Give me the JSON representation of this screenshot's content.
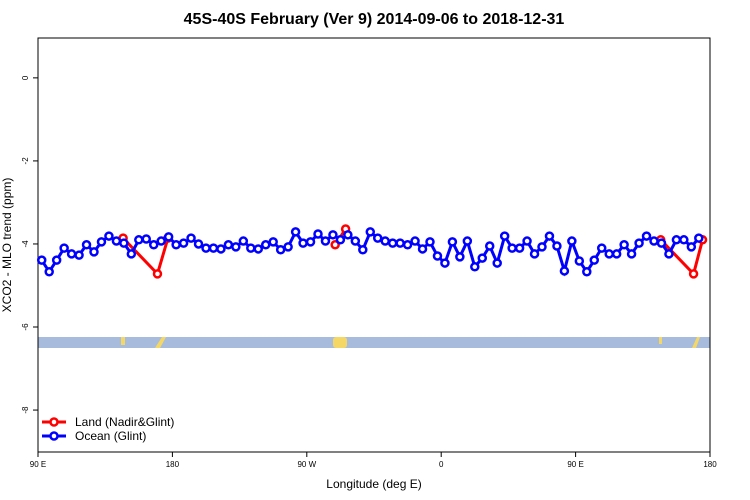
{
  "chart_data": {
    "type": "line",
    "title": "45S-40S February (Ver 9)   2014-09-06 to 2018-12-31",
    "x_label": "Longitude (deg E)",
    "y_label": "XCO2 - MLO trend (ppm)",
    "xlim": [
      90,
      540
    ],
    "ylim": [
      -9.01,
      0.96
    ],
    "xticks": [
      {
        "value": 90,
        "label": "90 E"
      },
      {
        "value": 180,
        "label": "180"
      },
      {
        "value": 270,
        "label": "90 W"
      },
      {
        "value": 360,
        "label": "0"
      },
      {
        "value": 450,
        "label": "90 E"
      },
      {
        "value": 540,
        "label": "180"
      }
    ],
    "yticks": [
      0,
      -2,
      -4,
      -6,
      -8
    ],
    "legend": "bottom-left",
    "series": [
      {
        "name": "Land (Nadir&Glint)",
        "color": "#ff0000",
        "x": [
          147,
          170,
          177,
          289,
          296,
          507,
          529,
          535
        ],
        "values": [
          -3.86,
          -4.72,
          -3.86,
          -4.02,
          -3.64,
          -3.9,
          -4.72,
          -3.9
        ]
      },
      {
        "name": "Ocean (Glint)",
        "color": "#0000ff",
        "x": [
          92.5,
          97.5,
          102.5,
          107.5,
          112.5,
          117.5,
          122.5,
          127.5,
          132.5,
          137.5,
          142.5,
          147.5,
          152.5,
          157.5,
          162.5,
          167.5,
          172.5,
          177.5,
          182.5,
          187.5,
          192.5,
          197.5,
          202.5,
          207.5,
          212.5,
          217.5,
          222.5,
          227.5,
          232.5,
          237.5,
          242.5,
          247.5,
          252.5,
          257.5,
          262.5,
          267.5,
          272.5,
          277.5,
          282.5,
          287.5,
          292.5,
          297.5,
          302.5,
          307.5,
          312.5,
          317.5,
          322.5,
          327.5,
          332.5,
          337.5,
          342.5,
          347.5,
          352.5,
          357.5,
          362.5,
          367.5,
          372.5,
          377.5,
          382.5,
          387.5,
          392.5,
          397.5,
          402.5,
          407.5,
          412.5,
          417.5,
          422.5,
          427.5,
          432.5,
          437.5,
          442.5,
          447.5,
          452.5,
          457.5,
          462.5,
          467.5,
          472.5,
          477.5,
          482.5,
          487.5,
          492.5,
          497.5,
          502.5,
          507.5,
          512.5,
          517.5,
          522.5,
          527.5,
          532.5
        ],
        "values": [
          -4.39,
          -4.67,
          -4.39,
          -4.1,
          -4.24,
          -4.27,
          -4.02,
          -4.19,
          -3.95,
          -3.81,
          -3.93,
          -3.98,
          -4.24,
          -3.9,
          -3.88,
          -4.02,
          -3.93,
          -3.83,
          -4.02,
          -3.98,
          -3.86,
          -4.0,
          -4.1,
          -4.1,
          -4.12,
          -4.02,
          -4.07,
          -3.93,
          -4.1,
          -4.12,
          -4.02,
          -3.95,
          -4.14,
          -4.07,
          -3.71,
          -3.98,
          -3.95,
          -3.76,
          -3.93,
          -3.78,
          -3.9,
          -3.78,
          -3.93,
          -4.14,
          -3.71,
          -3.86,
          -3.93,
          -3.98,
          -3.98,
          -4.02,
          -3.93,
          -4.12,
          -3.95,
          -4.29,
          -4.46,
          -3.95,
          -4.31,
          -3.93,
          -4.55,
          -4.34,
          -4.05,
          -4.46,
          -3.81,
          -4.1,
          -4.1,
          -3.93,
          -4.24,
          -4.07,
          -3.81,
          -4.05,
          -4.65,
          -3.93,
          -4.41,
          -4.67,
          -4.39,
          -4.1,
          -4.24,
          -4.24,
          -4.02,
          -4.24,
          -3.98,
          -3.81,
          -3.93,
          -3.98,
          -4.24,
          -3.9,
          -3.9,
          -4.07,
          -3.86
        ]
      }
    ]
  }
}
